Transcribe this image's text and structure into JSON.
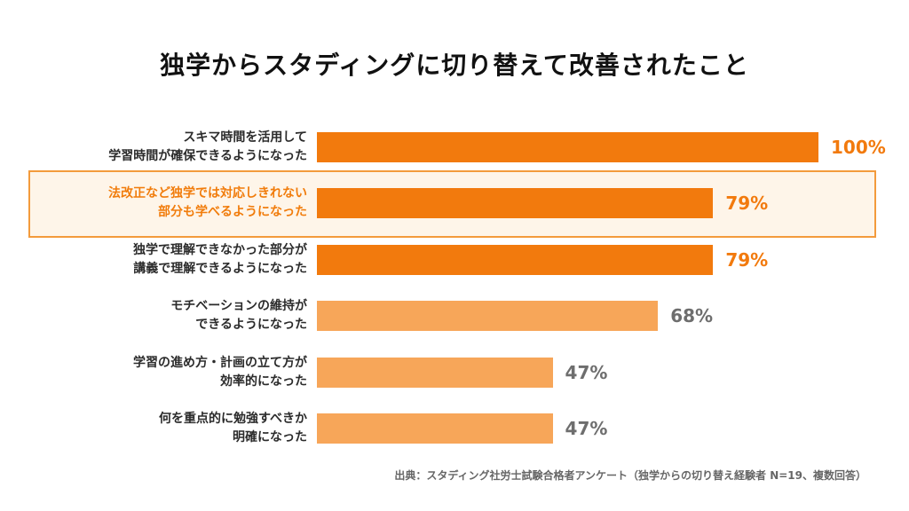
{
  "title": "独学からスタディングに切り替えて改善されたこと",
  "source": "出典：スタディング社労士試験合格者アンケート（独学からの切り替え経験者 N=19、複数回答）",
  "colors": {
    "dark_orange": "#f27a0d",
    "light_orange": "#f7a659",
    "highlight_border": "#f39b3c",
    "highlight_fill": "#fef5e9",
    "label_text": "#2b2b2b",
    "highlight_label_text": "#f17c0b",
    "light_value_text": "#6e6e6e"
  },
  "chart_data": {
    "type": "bar",
    "orientation": "horizontal",
    "title": "独学からスタディングに切り替えて改善されたこと",
    "categories": [
      [
        "スキマ時間を活用して",
        "学習時間が確保できるようになった"
      ],
      [
        "法改正など独学では対応しきれない",
        "部分も学べるようになった"
      ],
      [
        "独学で理解できなかった部分が",
        "講義で理解できるようになった"
      ],
      [
        "モチベーションの維持が",
        "できるようになった"
      ],
      [
        "学習の進め方・計画の立て方が",
        "効率的になった"
      ],
      [
        "何を重点的に勉強すべきか",
        "明確になった"
      ]
    ],
    "values": [
      100,
      79,
      79,
      68,
      47,
      47
    ],
    "value_labels": [
      "100%",
      "79%",
      "79%",
      "68%",
      "47%",
      "47%"
    ],
    "bar_colors": [
      "#f27a0d",
      "#f27a0d",
      "#f27a0d",
      "#f7a659",
      "#f7a659",
      "#f7a659"
    ],
    "highlighted_index": 1,
    "xlim": [
      0,
      100
    ],
    "grid": false,
    "legend": "none"
  }
}
